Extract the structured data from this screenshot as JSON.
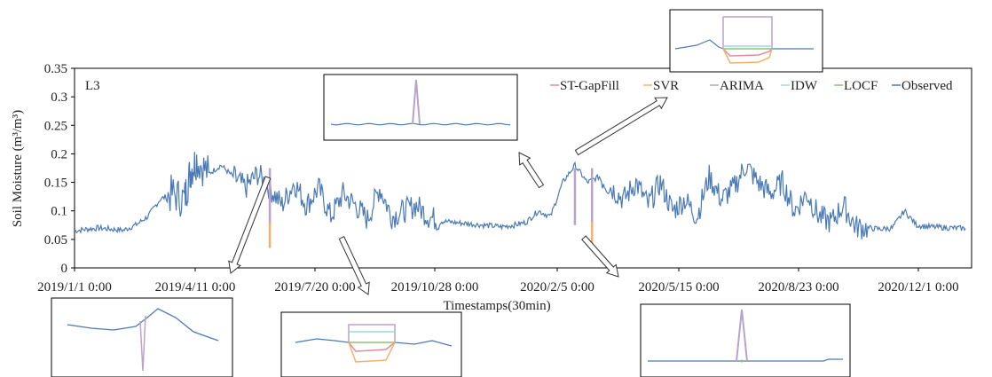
{
  "chart_data": {
    "type": "line",
    "panel_label": "L3",
    "xlabel": "Timestamps(30min)",
    "ylabel": "Soil Moisture (m³/m³)",
    "ylim": [
      0,
      0.35
    ],
    "yticks": [
      "0",
      "0.05",
      "0.1",
      "0.15",
      "0.2",
      "0.25",
      "0.3",
      "0.35"
    ],
    "x_tick_labels": [
      "2019/1/1 0:00",
      "2019/4/11 0:00",
      "2019/7/20 0:00",
      "2019/10/28 0:00",
      "2020/2/5 0:00",
      "2020/5/15 0:00",
      "2020/8/23 0:00",
      "2020/12/1 0:00"
    ],
    "legend_position": "top-right",
    "series": [
      {
        "name": "ST-GapFill",
        "color": "#e8889a"
      },
      {
        "name": "SVR",
        "color": "#f5b06a"
      },
      {
        "name": "ARIMA",
        "color": "#b9a3cc"
      },
      {
        "name": "IDW",
        "color": "#9ed6e0"
      },
      {
        "name": "LOCF",
        "color": "#8cc56a"
      },
      {
        "name": "Observed",
        "color": "#4a7ab5"
      }
    ],
    "observed": {
      "x_day": [
        0,
        10,
        20,
        30,
        40,
        50,
        60,
        70,
        80,
        90,
        95,
        100,
        110,
        120,
        130,
        140,
        150,
        160,
        170,
        180,
        190,
        200,
        210,
        220,
        230,
        240,
        250,
        260,
        270,
        280,
        290,
        300,
        310,
        320,
        330,
        340,
        350,
        360,
        370,
        380,
        390,
        400,
        410,
        420,
        430,
        440,
        450,
        460,
        470,
        480,
        490,
        500,
        510,
        520,
        530,
        540,
        550,
        560,
        570,
        580,
        590,
        600,
        610,
        620,
        630,
        640,
        650,
        660,
        670,
        680,
        690,
        700,
        710,
        720,
        730
      ],
      "y": [
        0.065,
        0.068,
        0.07,
        0.068,
        0.066,
        0.075,
        0.09,
        0.12,
        0.13,
        0.12,
        0.17,
        0.19,
        0.165,
        0.18,
        0.16,
        0.14,
        0.165,
        0.14,
        0.11,
        0.15,
        0.11,
        0.14,
        0.09,
        0.13,
        0.11,
        0.085,
        0.14,
        0.09,
        0.1,
        0.11,
        0.09,
        0.082,
        0.08,
        0.078,
        0.076,
        0.074,
        0.072,
        0.075,
        0.08,
        0.1,
        0.09,
        0.15,
        0.18,
        0.15,
        0.16,
        0.14,
        0.12,
        0.15,
        0.11,
        0.15,
        0.1,
        0.12,
        0.09,
        0.16,
        0.12,
        0.14,
        0.18,
        0.15,
        0.13,
        0.15,
        0.1,
        0.13,
        0.09,
        0.08,
        0.11,
        0.072,
        0.07,
        0.068,
        0.07,
        0.1,
        0.075,
        0.072,
        0.071,
        0.07,
        0.069
      ]
    },
    "gaps": [
      {
        "x_day": 160,
        "arima_peak": 0.175,
        "svr_low": 0.035
      },
      {
        "x_day": 410,
        "arima_peak": 0.175
      },
      {
        "x_day": 424,
        "arima_peak": 0.175,
        "svr_low": 0.035
      }
    ],
    "inset_top_middle": {
      "ylim": [
        0,
        0.35
      ],
      "observed_level": 0.085,
      "arima_peak": 0.35
    },
    "inset_top_right": {
      "arima_level": 0.25,
      "idw_level": 0.12,
      "locf_level": 0.11,
      "st_level": 0.09,
      "svr_level": 0.07,
      "observed_level": 0.11
    },
    "inset_bottom_left": {
      "observed": [
        0.12,
        0.125,
        0.13,
        0.15,
        0.18,
        0.19,
        0.175,
        0.15,
        0.14
      ],
      "arima_spike_low": 0.0,
      "arima_spike_high": 0.2
    },
    "inset_bottom_mid": {
      "arima_level": 0.25,
      "idw_level": 0.17,
      "locf_level": 0.14,
      "st_level": 0.11,
      "svr_level": 0.08,
      "observed_level": 0.14
    },
    "inset_bottom_right": {
      "observed_level": 0.1,
      "arima_peak": 0.35
    }
  }
}
